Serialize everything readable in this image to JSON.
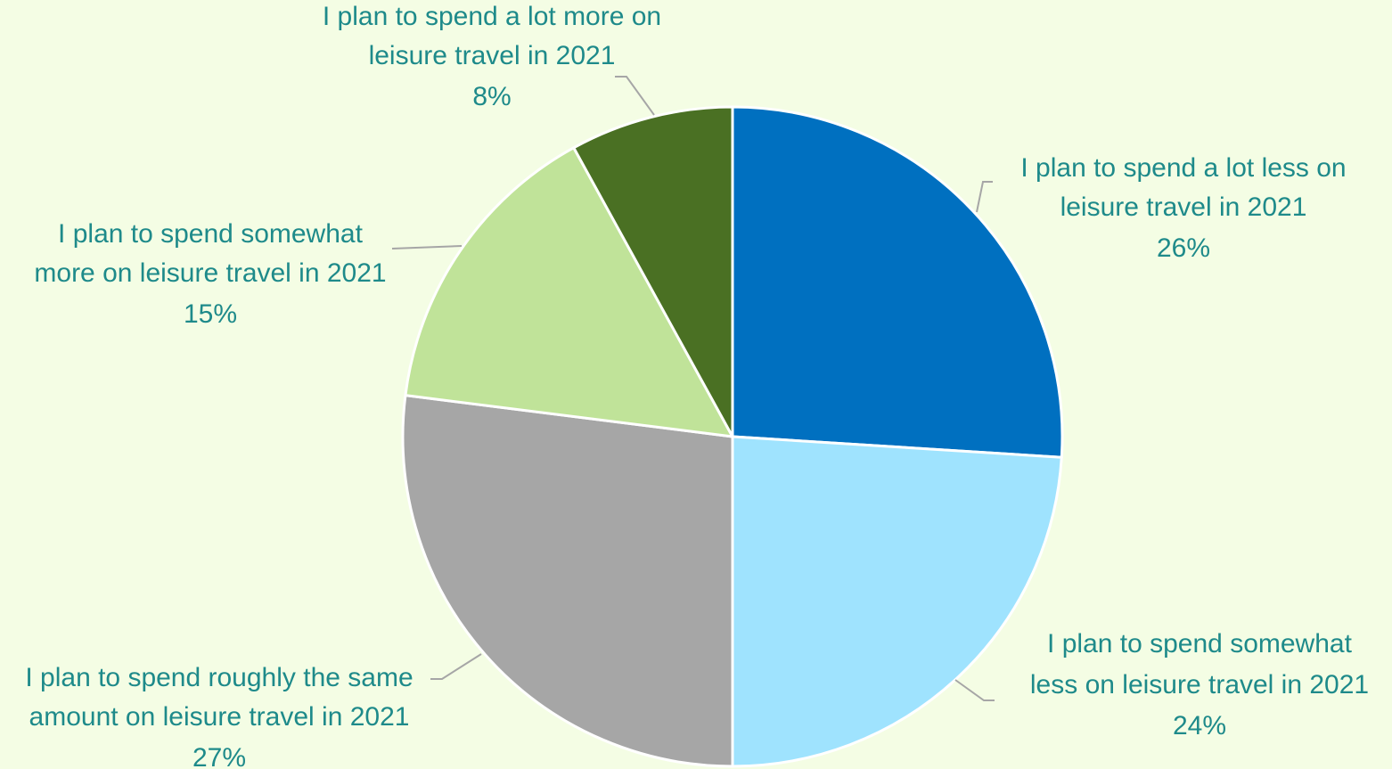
{
  "chart_data": {
    "type": "pie",
    "title": "",
    "start_angle_deg": 0,
    "direction": "clockwise",
    "slices": [
      {
        "label": "I plan to spend a lot less on leisure travel in 2021",
        "value": 26,
        "value_label": "26%",
        "color": "#0070c0"
      },
      {
        "label": "I plan to spend somewhat less on leisure travel in 2021",
        "value": 24,
        "value_label": "24%",
        "color": "#9fe3fe"
      },
      {
        "label": "I plan to spend roughly the same amount on leisure travel in 2021",
        "value": 27,
        "value_label": "27%",
        "color": "#a6a6a6"
      },
      {
        "label": "I plan to spend somewhat more on leisure travel in 2021",
        "value": 15,
        "value_label": "15%",
        "color": "#c0e399"
      },
      {
        "label": "I plan to spend a lot more on leisure travel in 2021",
        "value": 8,
        "value_label": "8%",
        "color": "#4a7023"
      }
    ],
    "label_color": "#1e8a8a",
    "leader_line_color": "#a6a6a6",
    "background_color": "#f4fde4",
    "legend": "none"
  }
}
